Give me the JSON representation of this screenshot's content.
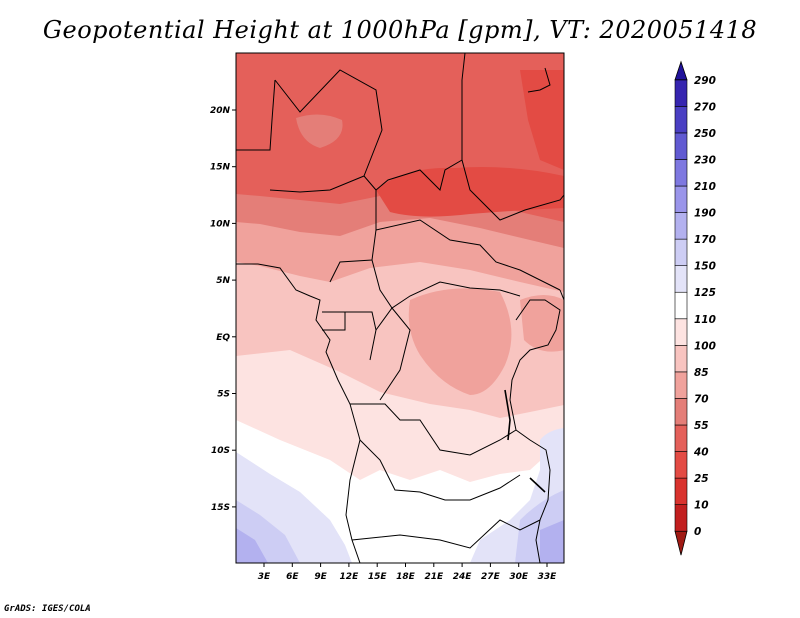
{
  "title": "Geopotential Height at 1000hPa [gpm], VT: 2020051418",
  "footer": "GrADS: IGES/COLA",
  "map": {
    "region": "Central Africa",
    "lon_labels": [
      "3E",
      "6E",
      "9E",
      "12E",
      "15E",
      "18E",
      "21E",
      "24E",
      "27E",
      "30E",
      "33E"
    ],
    "lat_labels": [
      "20N",
      "15N",
      "10N",
      "5N",
      "EQ",
      "5S",
      "10S",
      "15S"
    ]
  },
  "colorbar": {
    "levels": [
      "0",
      "10",
      "25",
      "40",
      "55",
      "70",
      "85",
      "100",
      "110",
      "125",
      "150",
      "170",
      "190",
      "210",
      "230",
      "250",
      "270",
      "290"
    ],
    "colors": {
      "c0": "#a01a14",
      "c1": "#c21f1f",
      "c2": "#d9332e",
      "c3": "#e34b44",
      "c4": "#e4605a",
      "c5": "#e47e78",
      "c6": "#f0a29c",
      "c7": "#f8c4c0",
      "c8": "#fde3e1",
      "c9": "#ffffff",
      "c10": "#e3e3f8",
      "c11": "#cdcdf4",
      "c12": "#b3b1ef",
      "c13": "#9a95ea",
      "c14": "#7e78e0",
      "c15": "#615ad2",
      "c16": "#4a3fc3",
      "c17": "#3625b0",
      "c18": "#20129a"
    }
  }
}
